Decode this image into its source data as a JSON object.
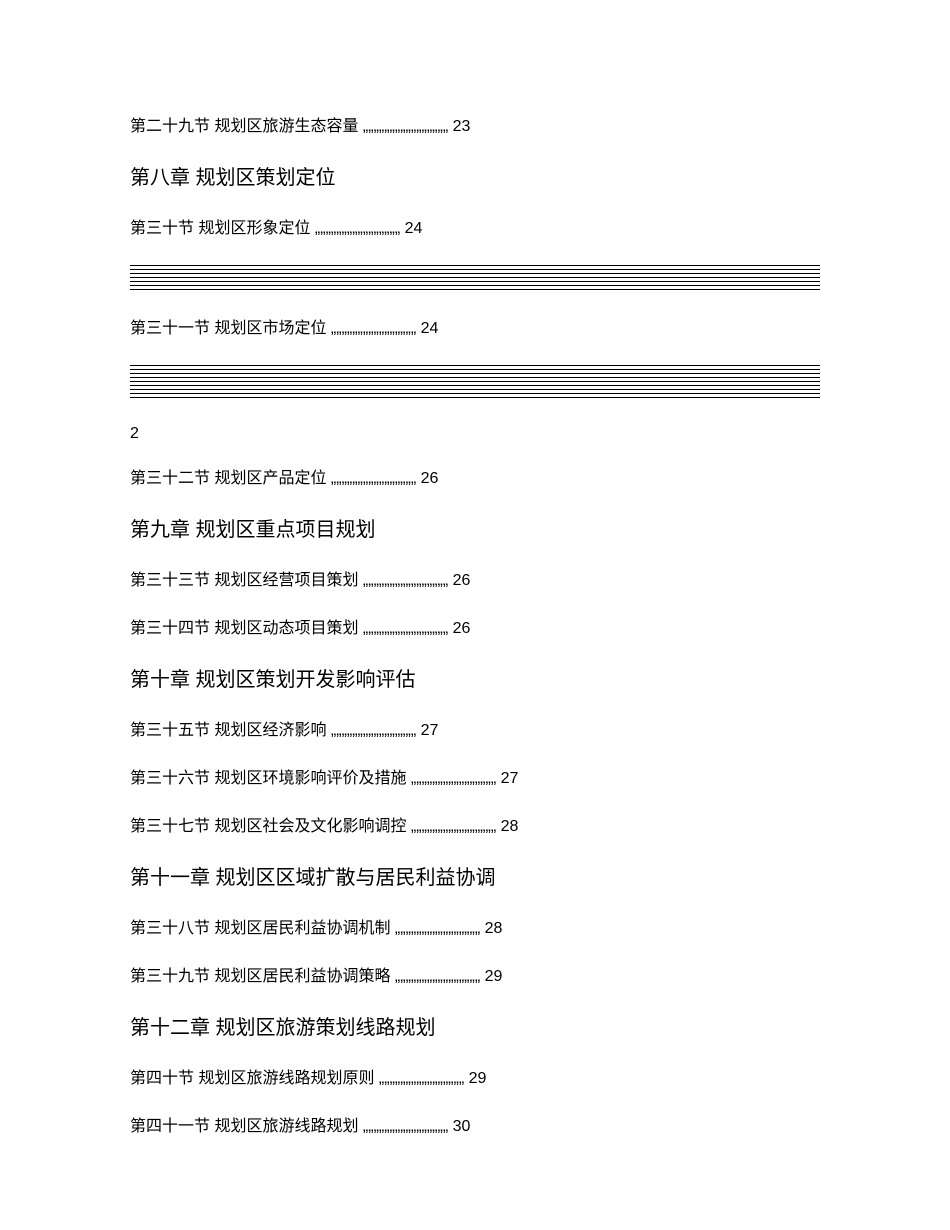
{
  "dots": "„„„„„„„„„„„„„„„„",
  "pageMarker": "2",
  "entries": [
    {
      "type": "section",
      "label": "第二十九节 规划区旅游生态容量",
      "page": "23"
    },
    {
      "type": "chapter",
      "label": "第八章 规划区策划定位"
    },
    {
      "type": "section",
      "label": "第三十节 规划区形象定位",
      "page": "24"
    },
    {
      "type": "rules",
      "count": 7
    },
    {
      "type": "section",
      "label": "第三十一节 规划区市场定位",
      "page": "24"
    },
    {
      "type": "rules",
      "count": 9
    },
    {
      "type": "page-marker"
    },
    {
      "type": "section",
      "label": "第三十二节 规划区产品定位",
      "page": "26"
    },
    {
      "type": "chapter",
      "label": "第九章 规划区重点项目规划"
    },
    {
      "type": "section",
      "label": "第三十三节 规划区经营项目策划",
      "page": "26"
    },
    {
      "type": "section",
      "label": "第三十四节 规划区动态项目策划",
      "page": "26"
    },
    {
      "type": "chapter",
      "label": "第十章 规划区策划开发影响评估"
    },
    {
      "type": "section",
      "label": "第三十五节 规划区经济影响",
      "page": "27"
    },
    {
      "type": "section",
      "label": "第三十六节 规划区环境影响评价及措施",
      "page": "27"
    },
    {
      "type": "section",
      "label": "第三十七节 规划区社会及文化影响调控",
      "page": "28"
    },
    {
      "type": "chapter",
      "label": "第十一章 规划区区域扩散与居民利益协调"
    },
    {
      "type": "section",
      "label": "第三十八节 规划区居民利益协调机制",
      "page": "28"
    },
    {
      "type": "section",
      "label": "第三十九节 规划区居民利益协调策略",
      "page": "29"
    },
    {
      "type": "chapter",
      "label": "第十二章 规划区旅游策划线路规划"
    },
    {
      "type": "section",
      "label": "第四十节 规划区旅游线路规划原则",
      "page": "29"
    },
    {
      "type": "section",
      "label": "第四十一节 规划区旅游线路规划",
      "page": "30"
    }
  ]
}
